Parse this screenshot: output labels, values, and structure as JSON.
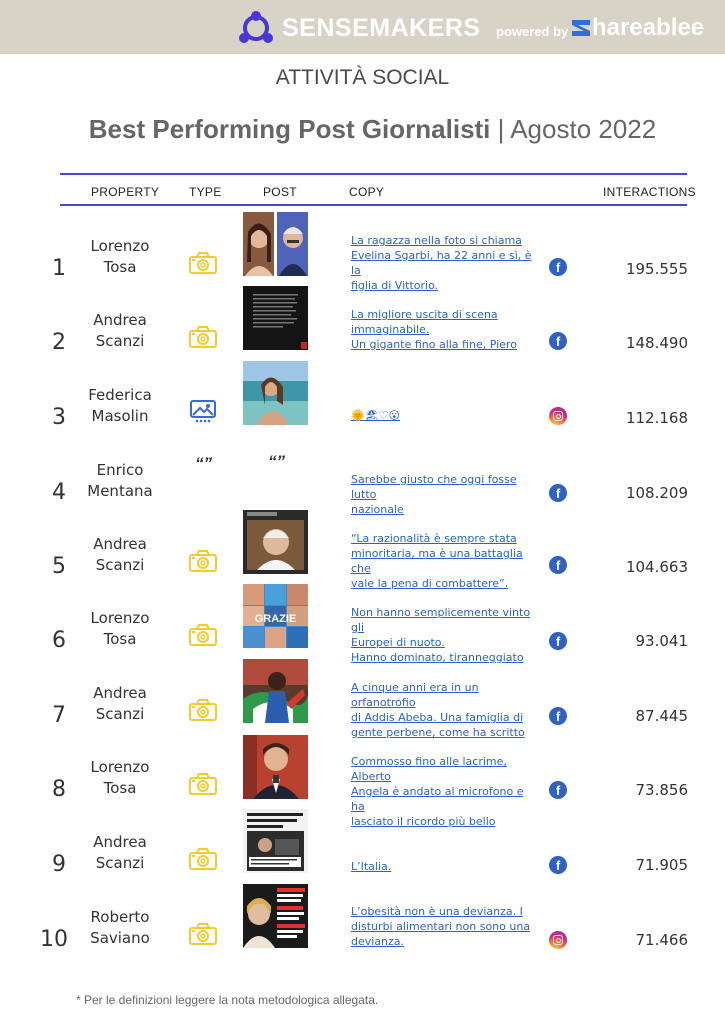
{
  "header": {
    "brand": "SENSEMAKERS",
    "powered_by": "powered by",
    "partner": "hareablee"
  },
  "subtitle": "ATTIVITÀ SOCIAL",
  "title": {
    "main": "Best Performing Post Giornalisti",
    "separator": " | ",
    "period": "Agosto 2022"
  },
  "columns": {
    "property": "PROPERTY",
    "type": "TYPE",
    "post": "POST",
    "copy": "COPY",
    "interactions": "INTERACTIONS"
  },
  "colors": {
    "accent_line": "#4848d8",
    "link": "#2b62c6",
    "photo_icon": "#f0cc2e",
    "carousel_icon": "#3a6bd0",
    "banner": "#d7d3c6"
  },
  "rows": [
    {
      "rank": "1",
      "property_line1": "Lorenzo",
      "property_line2": "Tosa",
      "type": "photo-icon",
      "copy": [
        "La ragazza nella foto si chiama",
        "Evelina Sgarbi, ha 22 anni e sì, è la",
        "figlia di Vittorio."
      ],
      "network": "facebook",
      "network_glyph": "f",
      "interactions": "195.555"
    },
    {
      "rank": "2",
      "property_line1": "Andrea",
      "property_line2": "Scanzi",
      "type": "photo-icon",
      "copy": [
        "La migliore uscita di scena",
        "immaginabile.",
        "Un gigante fino alla fine, Piero"
      ],
      "network": "facebook",
      "network_glyph": "f",
      "interactions": "148.490"
    },
    {
      "rank": "3",
      "property_line1": "Federica",
      "property_line2": "Masolin",
      "type": "carousel-icon",
      "copy": [
        "🌞🏖♡😮"
      ],
      "network": "instagram",
      "network_glyph": "",
      "interactions": "112.168"
    },
    {
      "rank": "4",
      "property_line1": "Enrico",
      "property_line2": "Mentana",
      "type": "quote-icon",
      "type_glyph": "“”",
      "post_glyph": "“”",
      "copy": [
        "Sarebbe giusto che oggi fosse lutto",
        "nazionale"
      ],
      "network": "facebook",
      "network_glyph": "f",
      "interactions": "108.209"
    },
    {
      "rank": "5",
      "property_line1": "Andrea",
      "property_line2": "Scanzi",
      "type": "photo-icon",
      "copy": [
        "“La razionalità è sempre stata",
        "minoritaria, ma è una battaglia che",
        "vale la pena di combattere”."
      ],
      "network": "facebook",
      "network_glyph": "f",
      "interactions": "104.663"
    },
    {
      "rank": "6",
      "property_line1": "Lorenzo",
      "property_line2": "Tosa",
      "type": "photo-icon",
      "copy": [
        "Non hanno semplicemente vinto gli",
        "Europei di nuoto.",
        "Hanno dominato, tiranneggiato"
      ],
      "network": "facebook",
      "network_glyph": "f",
      "interactions": "93.041",
      "thumb_caption": "GRAZIE"
    },
    {
      "rank": "7",
      "property_line1": "Andrea",
      "property_line2": "Scanzi",
      "type": "photo-icon",
      "copy": [
        "A cinque anni era in un orfanotrofio",
        "di Addis Abeba. Una famiglia di",
        "gente perbene, come ha scritto"
      ],
      "network": "facebook",
      "network_glyph": "f",
      "interactions": "87.445"
    },
    {
      "rank": "8",
      "property_line1": "Lorenzo",
      "property_line2": "Tosa",
      "type": "photo-icon",
      "copy": [
        "Commosso fino alle lacrime, Alberto",
        "Angela è andato al microfono e ha",
        "lasciato il ricordo più bello"
      ],
      "network": "facebook",
      "network_glyph": "f",
      "interactions": "73.856"
    },
    {
      "rank": "9",
      "property_line1": "Andrea",
      "property_line2": "Scanzi",
      "type": "photo-icon",
      "copy": [
        "L’Italia."
      ],
      "network": "facebook",
      "network_glyph": "f",
      "interactions": "71.905"
    },
    {
      "rank": "10",
      "property_line1": "Roberto",
      "property_line2": "Saviano",
      "type": "photo-icon",
      "copy": [
        "L’obesità non è una devianza. I",
        "disturbi alimentari non sono una",
        "devianza."
      ],
      "network": "instagram",
      "network_glyph": "",
      "interactions": "71.466"
    }
  ],
  "footnote": "* Per le definizioni leggere la nota metodologica allegata."
}
